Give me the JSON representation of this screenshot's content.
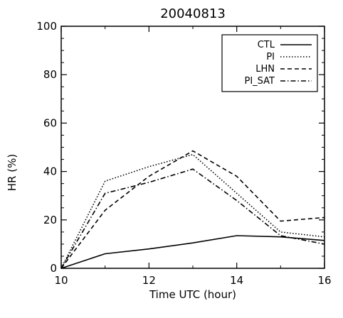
{
  "chart_data": {
    "type": "line",
    "title": "20040813",
    "xlabel": "Time UTC (hour)",
    "ylabel": "HR (%)",
    "xlim": [
      10,
      16
    ],
    "ylim": [
      0,
      100
    ],
    "xticks": [
      10,
      12,
      14,
      16
    ],
    "yticks": [
      0,
      20,
      40,
      60,
      80,
      100
    ],
    "grid": false,
    "legend_position": "top-right",
    "x": [
      10,
      11,
      12,
      13,
      14,
      15,
      16
    ],
    "series": [
      {
        "name": "CTL",
        "style": "solid",
        "values": [
          0,
          6,
          8,
          10.5,
          13.5,
          13,
          11.5
        ]
      },
      {
        "name": "PI",
        "style": "dotted",
        "values": [
          0,
          36,
          42,
          47,
          31,
          15,
          13
        ]
      },
      {
        "name": "LHN",
        "style": "dashed",
        "values": [
          0,
          24,
          38,
          48.5,
          38,
          19.5,
          21
        ]
      },
      {
        "name": "PI_SAT",
        "style": "dashdot",
        "values": [
          0,
          31,
          35.5,
          41,
          28,
          13.5,
          10
        ]
      }
    ]
  }
}
